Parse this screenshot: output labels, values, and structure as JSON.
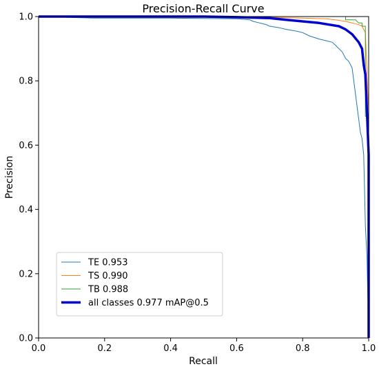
{
  "chart_data": {
    "type": "line",
    "title": "Precision-Recall Curve",
    "xlabel": "Recall",
    "ylabel": "Precision",
    "xlim": [
      0,
      1
    ],
    "ylim": [
      0,
      1
    ],
    "xticks": [
      "0.0",
      "0.2",
      "0.4",
      "0.6",
      "0.8",
      "1.0"
    ],
    "yticks": [
      "0.0",
      "0.2",
      "0.4",
      "0.6",
      "0.8",
      "1.0"
    ],
    "grid": false,
    "legend_position": "lower-left",
    "series": [
      {
        "name": "TE 0.953",
        "color": "#1f77b4",
        "width": 1,
        "points": [
          [
            0.0,
            1.0
          ],
          [
            0.17,
            0.995
          ],
          [
            0.4,
            0.995
          ],
          [
            0.6,
            0.993
          ],
          [
            0.64,
            0.99
          ],
          [
            0.65,
            0.985
          ],
          [
            0.67,
            0.98
          ],
          [
            0.69,
            0.975
          ],
          [
            0.7,
            0.97
          ],
          [
            0.73,
            0.965
          ],
          [
            0.75,
            0.96
          ],
          [
            0.78,
            0.955
          ],
          [
            0.8,
            0.95
          ],
          [
            0.82,
            0.94
          ],
          [
            0.85,
            0.93
          ],
          [
            0.87,
            0.925
          ],
          [
            0.89,
            0.92
          ],
          [
            0.9,
            0.91
          ],
          [
            0.91,
            0.9
          ],
          [
            0.92,
            0.89
          ],
          [
            0.93,
            0.87
          ],
          [
            0.94,
            0.86
          ],
          [
            0.95,
            0.84
          ],
          [
            0.955,
            0.8
          ],
          [
            0.96,
            0.76
          ],
          [
            0.965,
            0.72
          ],
          [
            0.97,
            0.68
          ],
          [
            0.975,
            0.64
          ],
          [
            0.98,
            0.62
          ],
          [
            0.985,
            0.57
          ],
          [
            0.99,
            0.35
          ],
          [
            0.995,
            0.25
          ],
          [
            1.0,
            0.0
          ]
        ]
      },
      {
        "name": "TS 0.990",
        "color": "#ff7f0e",
        "width": 1,
        "points": [
          [
            0.0,
            1.0
          ],
          [
            0.6,
            1.0
          ],
          [
            0.8,
            0.995
          ],
          [
            0.87,
            0.993
          ],
          [
            0.9,
            0.99
          ],
          [
            0.93,
            0.985
          ],
          [
            0.95,
            0.98
          ],
          [
            0.97,
            0.975
          ],
          [
            0.98,
            0.97
          ],
          [
            0.985,
            0.96
          ],
          [
            0.99,
            0.95
          ],
          [
            1.0,
            0.7
          ],
          [
            1.0,
            0.0
          ]
        ]
      },
      {
        "name": "TB 0.988",
        "color": "#2ca02c",
        "width": 1,
        "points": [
          [
            0.0,
            1.0
          ],
          [
            0.93,
            1.0
          ],
          [
            0.93,
            0.99
          ],
          [
            0.96,
            0.99
          ],
          [
            0.97,
            0.98
          ],
          [
            0.98,
            0.98
          ],
          [
            0.98,
            0.97
          ],
          [
            0.99,
            0.97
          ],
          [
            0.99,
            0.69
          ],
          [
            1.0,
            0.69
          ],
          [
            1.0,
            0.0
          ]
        ]
      },
      {
        "name": "all classes 0.977 mAP@0.5",
        "color": "#0000cc",
        "width": 3.5,
        "points": [
          [
            0.0,
            1.0
          ],
          [
            0.5,
            1.0
          ],
          [
            0.6,
            0.998
          ],
          [
            0.7,
            0.995
          ],
          [
            0.75,
            0.99
          ],
          [
            0.8,
            0.985
          ],
          [
            0.85,
            0.98
          ],
          [
            0.88,
            0.975
          ],
          [
            0.91,
            0.97
          ],
          [
            0.93,
            0.96
          ],
          [
            0.95,
            0.945
          ],
          [
            0.97,
            0.92
          ],
          [
            0.98,
            0.9
          ],
          [
            0.985,
            0.85
          ],
          [
            0.99,
            0.82
          ],
          [
            0.995,
            0.7
          ],
          [
            1.0,
            0.57
          ],
          [
            1.0,
            0.0
          ]
        ]
      }
    ]
  }
}
